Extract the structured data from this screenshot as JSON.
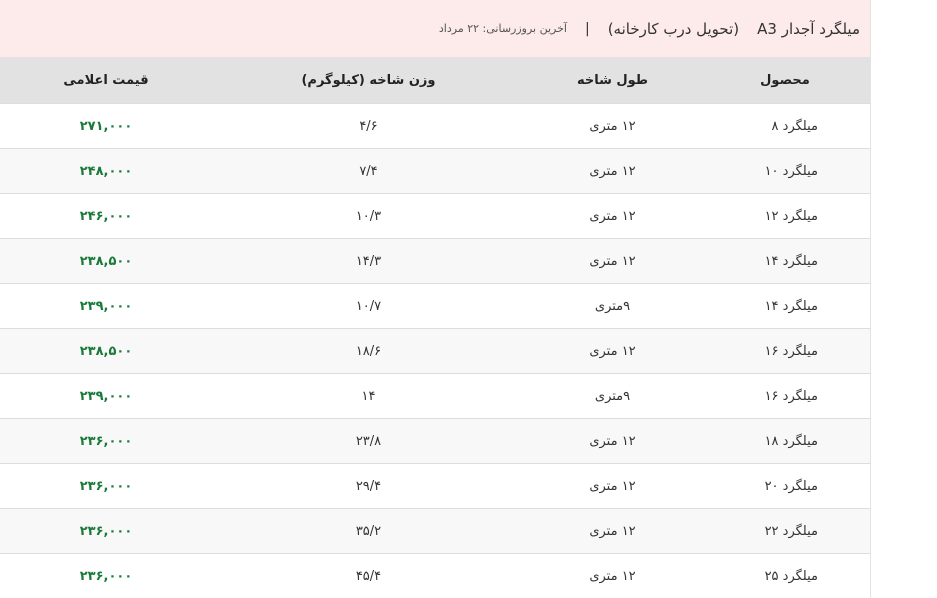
{
  "header": {
    "title": "میلگرد آجدار A3",
    "subtitle": "(تحویل درب کارخانه)",
    "separator": "|",
    "updated": "آخرین بروزرسانی: ۲۲ مرداد"
  },
  "columns": [
    "محصول",
    "طول شاخه",
    "وزن شاخه (کیلوگرم)",
    "قیمت اعلامی"
  ],
  "rows": [
    {
      "product": "میلگرد ۸",
      "length": "۱۲ متری",
      "weight": "۴/۶",
      "price": "۲۷۱,۰۰۰"
    },
    {
      "product": "میلگرد ۱۰",
      "length": "۱۲ متری",
      "weight": "۷/۴",
      "price": "۲۴۸,۰۰۰"
    },
    {
      "product": "میلگرد ۱۲",
      "length": "۱۲ متری",
      "weight": "۱۰/۳",
      "price": "۲۴۶,۰۰۰"
    },
    {
      "product": "میلگرد ۱۴",
      "length": "۱۲ متری",
      "weight": "۱۴/۳",
      "price": "۲۳۸,۵۰۰"
    },
    {
      "product": "میلگرد ۱۴",
      "length": "۹متری",
      "weight": "۱۰/۷",
      "price": "۲۳۹,۰۰۰"
    },
    {
      "product": "میلگرد ۱۶",
      "length": "۱۲ متری",
      "weight": "۱۸/۶",
      "price": "۲۳۸,۵۰۰"
    },
    {
      "product": "میلگرد ۱۶",
      "length": "۹متری",
      "weight": "۱۴",
      "price": "۲۳۹,۰۰۰"
    },
    {
      "product": "میلگرد ۱۸",
      "length": "۱۲ متری",
      "weight": "۲۳/۸",
      "price": "۲۳۶,۰۰۰"
    },
    {
      "product": "میلگرد ۲۰",
      "length": "۱۲ متری",
      "weight": "۲۹/۴",
      "price": "۲۳۶,۰۰۰"
    },
    {
      "product": "میلگرد ۲۲",
      "length": "۱۲ متری",
      "weight": "۳۵/۲",
      "price": "۲۳۶,۰۰۰"
    },
    {
      "product": "میلگرد ۲۵",
      "length": "۱۲ متری",
      "weight": "۴۵/۴",
      "price": "۲۳۶,۰۰۰"
    }
  ],
  "colors": {
    "price": "#1a7a3a",
    "header_bg": "#fdeaea",
    "column_header_bg": "#e2e2e2"
  }
}
